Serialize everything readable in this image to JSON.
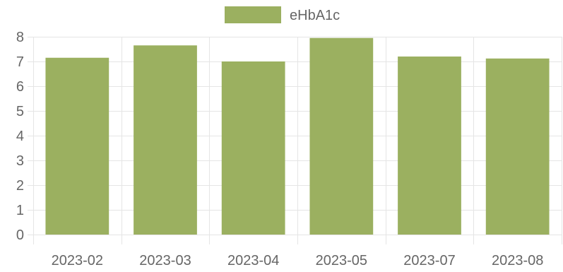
{
  "chart_data": {
    "type": "bar",
    "categories": [
      "2023-02",
      "2023-03",
      "2023-04",
      "2023-05",
      "2023-07",
      "2023-08"
    ],
    "series": [
      {
        "name": "eHbA1c",
        "values": [
          7.15,
          7.65,
          7.0,
          7.95,
          7.2,
          7.12
        ]
      }
    ],
    "xlabel": "",
    "ylabel": "",
    "ylim": [
      0,
      8
    ],
    "yticks": [
      0,
      1,
      2,
      3,
      4,
      5,
      6,
      7,
      8
    ],
    "grid": true,
    "legend_position": "top-center"
  },
  "colors": {
    "bar_fill": "#9bb060",
    "grid": "#e5e5e5",
    "axis_text": "#666666"
  }
}
